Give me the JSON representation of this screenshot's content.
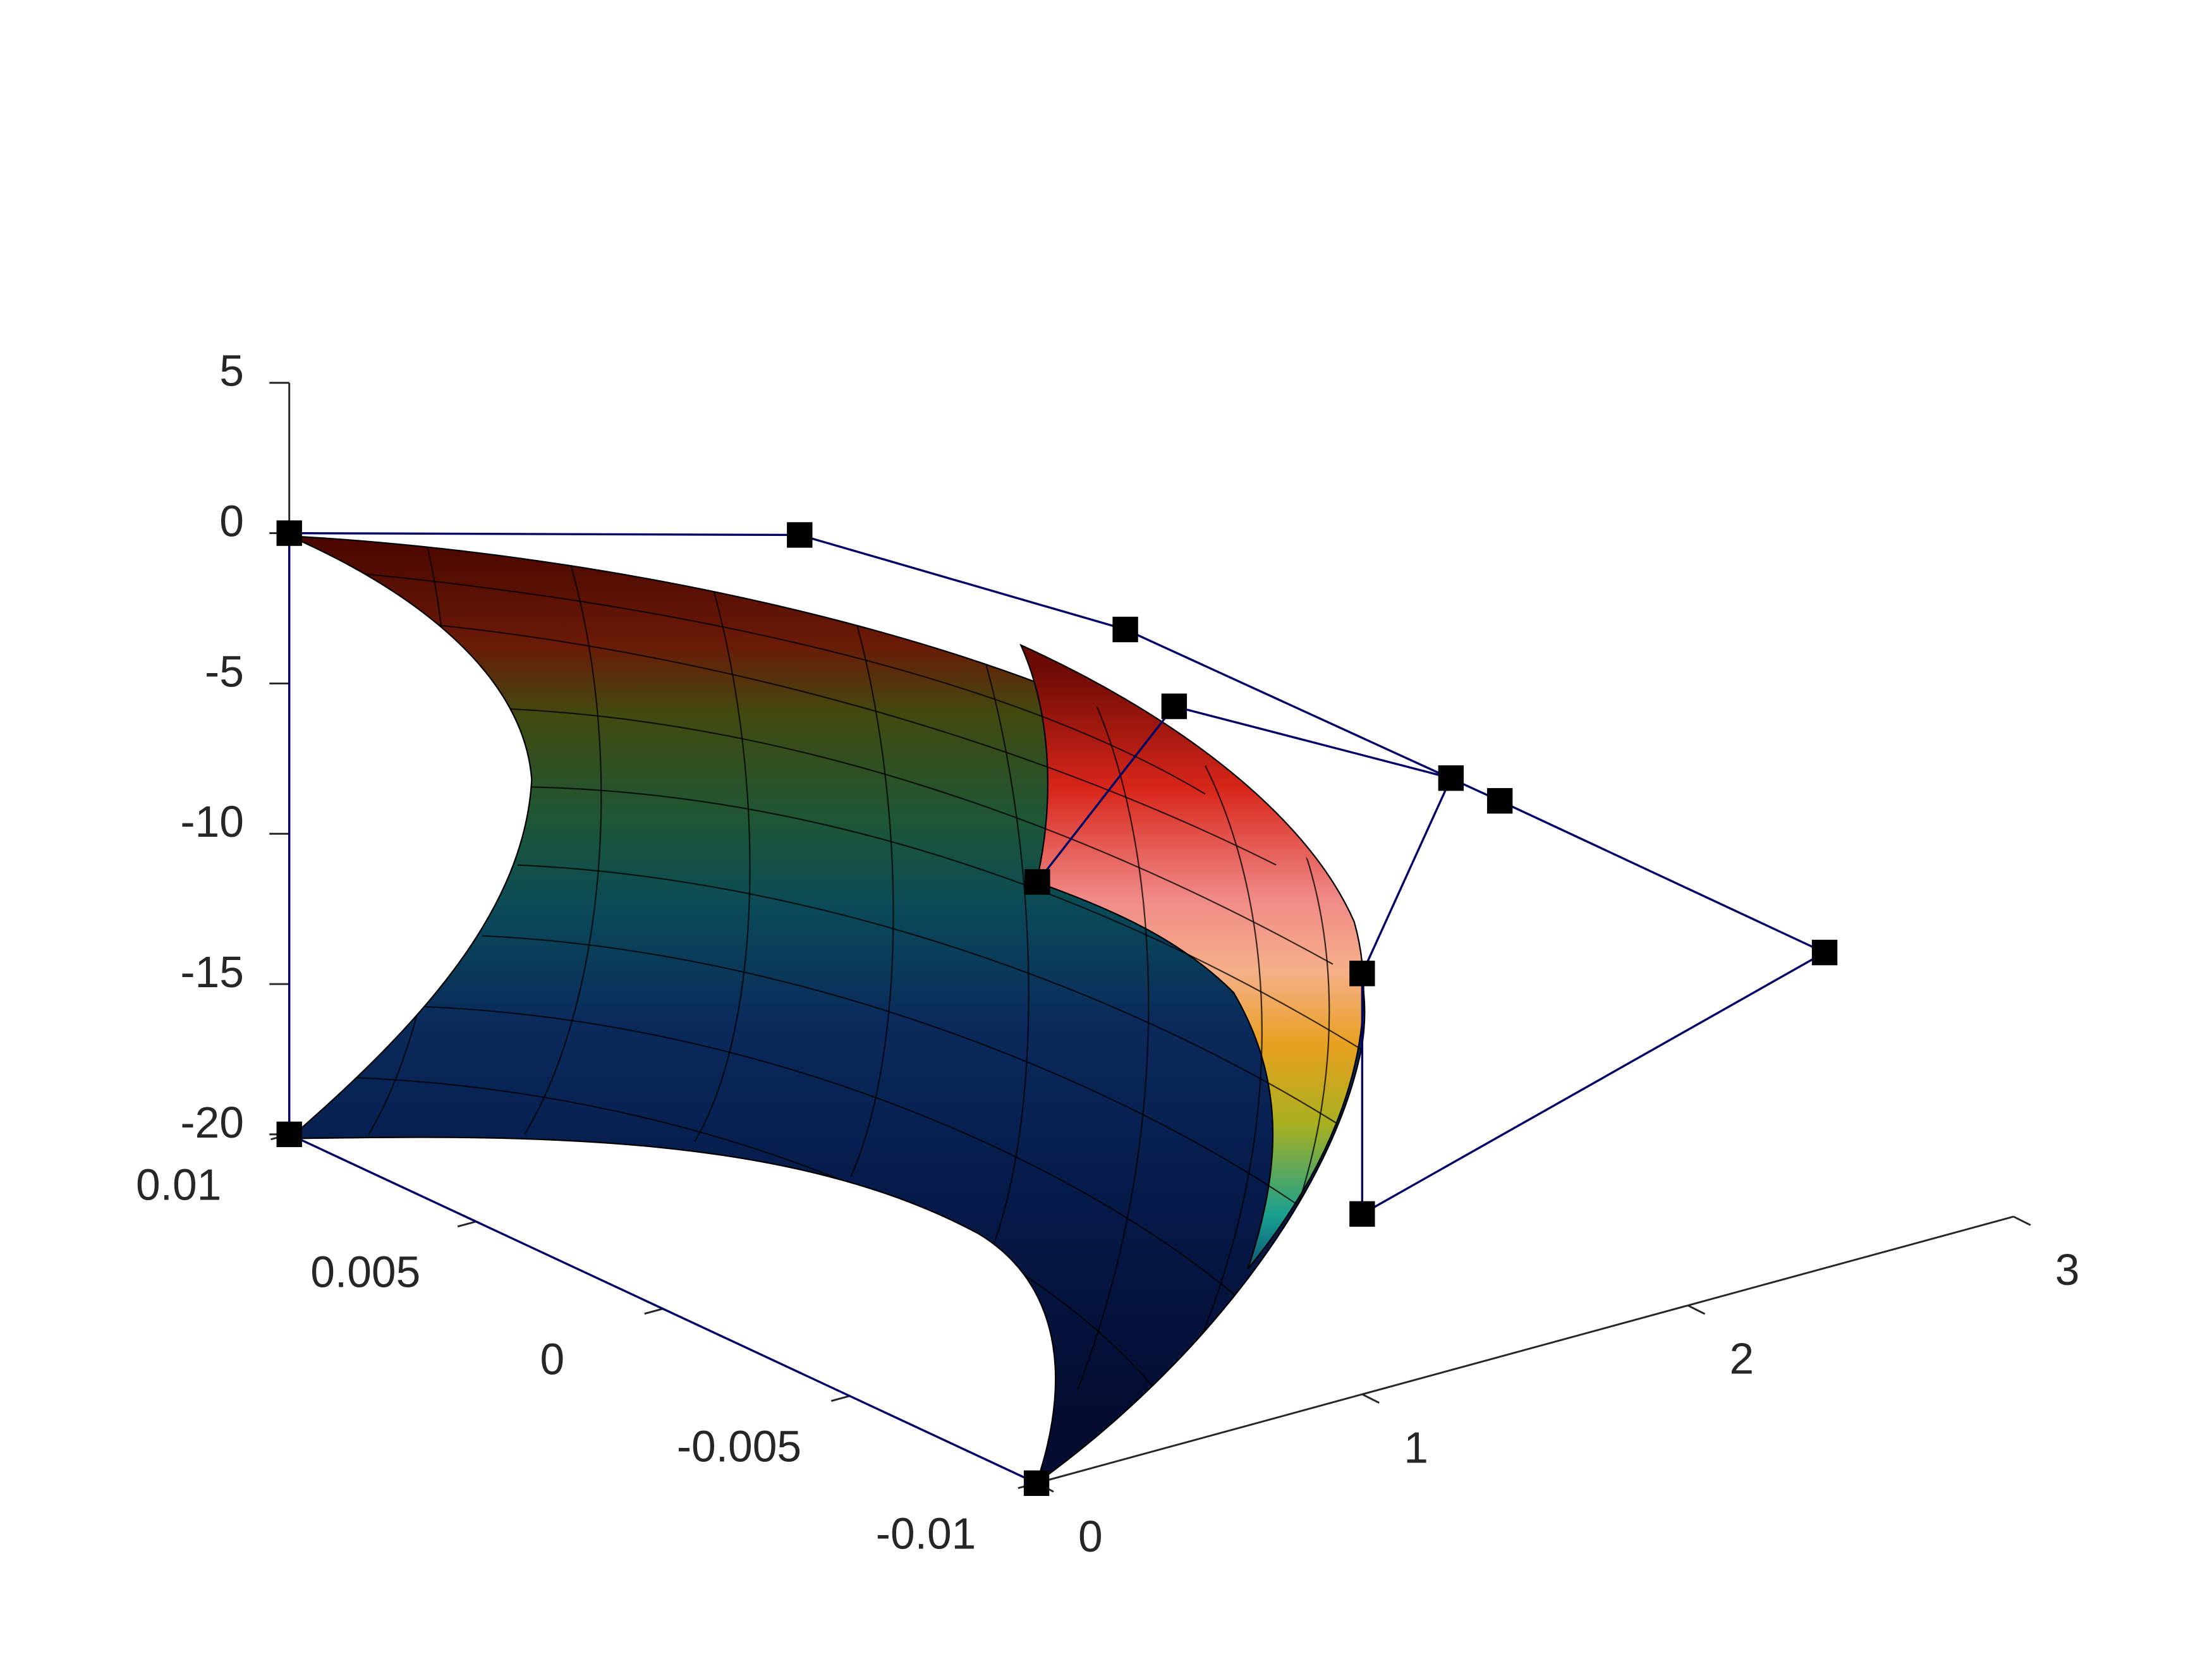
{
  "chart_data": {
    "type": "surface3d",
    "xlim": [
      0,
      3
    ],
    "ylim": [
      -0.01,
      0.01
    ],
    "zlim": [
      -20,
      5
    ],
    "xticks": [
      0,
      1,
      2,
      3
    ],
    "yticks": [
      -0.01,
      -0.005,
      0,
      0.005,
      0.01
    ],
    "zticks": [
      -20,
      -15,
      -10,
      -5,
      0,
      5
    ],
    "control_points": {
      "color": "#000066",
      "x": [
        0,
        0,
        0,
        0.42,
        1.42,
        2.57,
        2.42,
        1.0,
        1.0,
        2.42,
        1.57,
        1.15
      ],
      "y": [
        -0.01,
        0.01,
        0.01,
        0,
        0,
        0,
        -0.01,
        -0.01,
        -0.01,
        0,
        0,
        0
      ],
      "z": [
        -20,
        -20,
        0,
        4.5,
        -1.6,
        -10.7,
        -9.5,
        -14,
        -6.0,
        -9.5,
        -4.6,
        -9.2
      ]
    }
  }
}
